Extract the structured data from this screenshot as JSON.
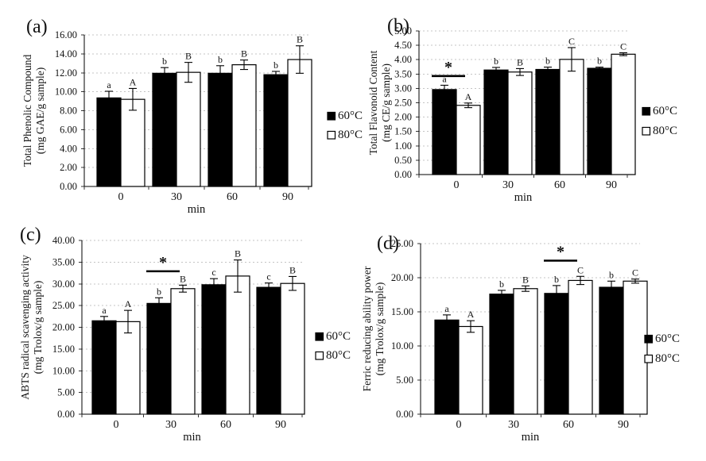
{
  "figure": {
    "description": "Four-panel bar chart figure comparing antioxidant properties at two temperatures over time",
    "background": "#ffffff"
  },
  "colors": {
    "series_60c_fill": "#000000",
    "series_80c_fill": "#ffffff",
    "bar_stroke": "#000000",
    "gridline": "#c4c4c4",
    "axis": "#000000",
    "text": "#111111"
  },
  "legend": {
    "items": [
      {
        "label": "60°C",
        "swatch": "filled"
      },
      {
        "label": "80°C",
        "swatch": "open"
      }
    ]
  },
  "chart_data": [
    {
      "type": "bar",
      "panel_label": "(a)",
      "ylabel": "Total Phenolic Compound",
      "ylabel_units": "(mg GAE/g sample)",
      "xlabel": "min",
      "categories": [
        "0",
        "30",
        "60",
        "90"
      ],
      "ylim": [
        0,
        16
      ],
      "ytick_step": 2,
      "grid": "horizontal-dotted",
      "legend_position": "right",
      "series": [
        {
          "name": "60°C",
          "style": "filled",
          "values": [
            9.35,
            11.95,
            11.95,
            11.8
          ],
          "errors": [
            0.7,
            0.6,
            0.8,
            0.35
          ],
          "letters": [
            "a",
            "b",
            "b",
            "b"
          ]
        },
        {
          "name": "80°C",
          "style": "open",
          "values": [
            9.2,
            12.05,
            12.85,
            13.4
          ],
          "errors": [
            1.15,
            1.05,
            0.5,
            1.45
          ],
          "letters": [
            "A",
            "B",
            "B",
            "B"
          ]
        }
      ],
      "significance_marker": null
    },
    {
      "type": "bar",
      "panel_label": "(b)",
      "ylabel": "Total Flavonoid Content",
      "ylabel_units": "(mg CE/g sample)",
      "xlabel": "min",
      "categories": [
        "0",
        "30",
        "60",
        "90"
      ],
      "ylim": [
        0,
        5
      ],
      "ytick_step": 0.5,
      "grid": "horizontal-dotted",
      "legend_position": "right",
      "series": [
        {
          "name": "60°C",
          "style": "filled",
          "values": [
            2.96,
            3.64,
            3.66,
            3.7
          ],
          "errors": [
            0.15,
            0.09,
            0.08,
            0.04
          ],
          "letters": [
            "a",
            "b",
            "b",
            "b"
          ]
        },
        {
          "name": "80°C",
          "style": "open",
          "values": [
            2.41,
            3.57,
            4.01,
            4.19
          ],
          "errors": [
            0.08,
            0.12,
            0.41,
            0.05
          ],
          "letters": [
            "A",
            "B",
            "C",
            "C"
          ]
        }
      ],
      "significance_marker": {
        "symbol": "*",
        "group_index": 0,
        "line_y": 3.43
      }
    },
    {
      "type": "bar",
      "panel_label": "(c)",
      "ylabel": "ABTS radical scavenging activity",
      "ylabel_units": "(mg Trolox/g sample)",
      "xlabel": "min",
      "categories": [
        "0",
        "30",
        "60",
        "90"
      ],
      "ylim": [
        0,
        40
      ],
      "ytick_step": 5,
      "grid": "horizontal-dotted",
      "legend_position": "right",
      "series": [
        {
          "name": "60°C",
          "style": "filled",
          "values": [
            21.5,
            25.5,
            29.8,
            29.2
          ],
          "errors": [
            1.0,
            1.3,
            1.4,
            1.0
          ],
          "letters": [
            "a",
            "b",
            "c",
            "c"
          ]
        },
        {
          "name": "80°C",
          "style": "open",
          "values": [
            21.3,
            28.9,
            31.8,
            30.1
          ],
          "errors": [
            2.6,
            0.8,
            3.7,
            1.6
          ],
          "letters": [
            "A",
            "B",
            "B",
            "B"
          ]
        }
      ],
      "significance_marker": {
        "symbol": "*",
        "group_index": 1,
        "line_y": 32.9
      }
    },
    {
      "type": "bar",
      "panel_label": "(d)",
      "ylabel": "Ferric reducing ability power",
      "ylabel_units": "(mg Trolox/g sample)",
      "xlabel": "min",
      "categories": [
        "0",
        "30",
        "60",
        "90"
      ],
      "ylim": [
        0,
        25
      ],
      "ytick_step": 5,
      "grid": "horizontal-dotted",
      "legend_position": "right",
      "series": [
        {
          "name": "60°C",
          "style": "filled",
          "values": [
            13.8,
            17.6,
            17.7,
            18.6
          ],
          "errors": [
            0.75,
            0.55,
            1.15,
            0.9
          ],
          "letters": [
            "a",
            "b",
            "b",
            "b"
          ]
        },
        {
          "name": "80°C",
          "style": "open",
          "values": [
            12.85,
            18.4,
            19.6,
            19.5
          ],
          "errors": [
            0.85,
            0.4,
            0.6,
            0.3
          ],
          "letters": [
            "A",
            "B",
            "C",
            "C"
          ]
        }
      ],
      "significance_marker": {
        "symbol": "*",
        "group_index": 2,
        "line_y": 22.5
      }
    }
  ]
}
